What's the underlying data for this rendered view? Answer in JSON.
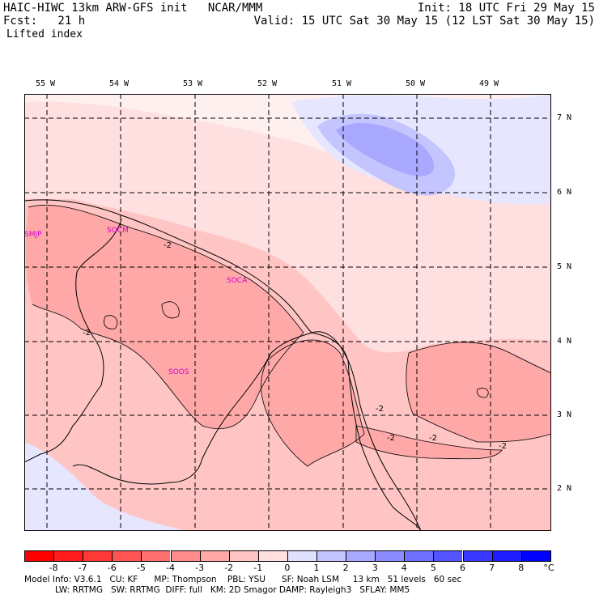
{
  "header": {
    "model_line": "HAIC-HIWC 13km ARW-GFS init   NCAR/MMM",
    "fcst_line": "Fcst:   21 h",
    "field": "Lifted index",
    "init_line": "Init: 18 UTC Fri 29 May 15",
    "valid_line": "Valid: 15 UTC Sat 30 May 15 (12 LST Sat 30 May 15)"
  },
  "axes": {
    "longitudes": [
      "55 W",
      "54 W",
      "53 W",
      "52 W",
      "51 W",
      "50 W",
      "49 W"
    ],
    "latitudes": [
      "7 N",
      "6 N",
      "5 N",
      "4 N",
      "3 N",
      "2 N"
    ]
  },
  "stations": [
    "SMJP",
    "SOCA",
    "SOCM",
    "SOOS"
  ],
  "contour_labels": [
    "-2",
    "-2",
    "-2",
    "-2",
    "-2",
    "-2"
  ],
  "colorbar": {
    "labels": [
      "-8",
      "-7",
      "-6",
      "-5",
      "-4",
      "-3",
      "-2",
      "-1",
      "0",
      "1",
      "2",
      "3",
      "4",
      "5",
      "6",
      "7",
      "8"
    ],
    "unit": "°C",
    "colors": [
      "#ff0000",
      "#ff1c1c",
      "#ff3838",
      "#ff5454",
      "#ff7070",
      "#ff8c8c",
      "#ffa8a8",
      "#ffc4c4",
      "#ffe0e0",
      "#e0e0ff",
      "#c4c4ff",
      "#a8a8ff",
      "#8c8cff",
      "#7070ff",
      "#5454ff",
      "#3838ff",
      "#1c1cff",
      "#0000ff"
    ]
  },
  "footer": {
    "line1": "Model Info: V3.6.1   CU: KF      MP: Thompson    PBL: YSU      SF: Noah LSM     13 km   51 levels   60 sec",
    "line2": "LW: RRTMG   SW: RRTMG  DIFF: full   KM: 2D Smagor DAMP: Rayleigh3   SFLAY: MM5"
  }
}
